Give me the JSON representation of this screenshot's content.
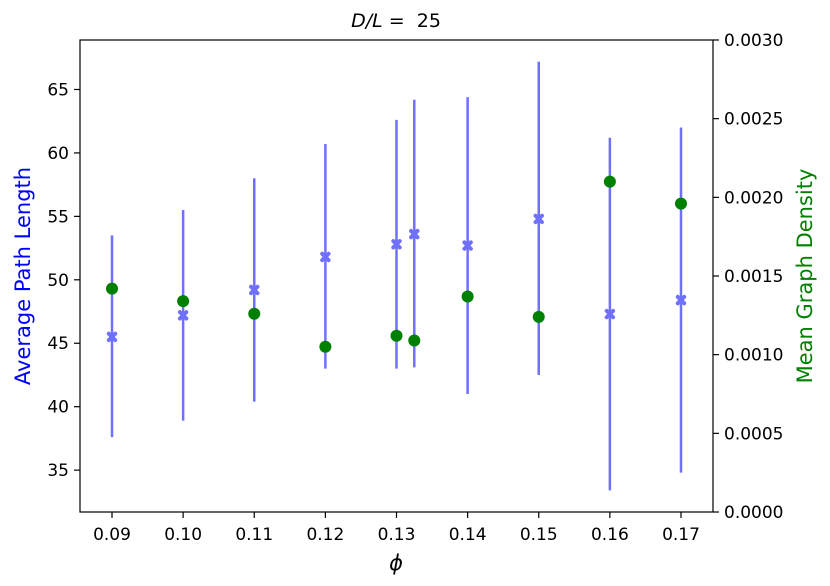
{
  "chart_data": {
    "type": "scatter",
    "title": {
      "italic_part": "D/L",
      "rest": " =  25"
    },
    "xlabel": "ϕ",
    "ylabel_left": "Average Path Length",
    "ylabel_right": "Mean Graph Density",
    "x": [
      0.09,
      0.1,
      0.11,
      0.12,
      0.13,
      0.1325,
      0.14,
      0.15,
      0.16,
      0.17
    ],
    "xlim": [
      0.0855,
      0.1745
    ],
    "xticks": [
      "0.09",
      "0.10",
      "0.11",
      "0.12",
      "0.13",
      "0.14",
      "0.15",
      "0.16",
      "0.17"
    ],
    "xtick_values": [
      0.09,
      0.1,
      0.11,
      0.12,
      0.13,
      0.14,
      0.15,
      0.16,
      0.17
    ],
    "left_axis": {
      "ylim": [
        31.7,
        68.9
      ],
      "ticks": [
        35,
        40,
        45,
        50,
        55,
        60,
        65
      ],
      "tick_labels": [
        "35",
        "40",
        "45",
        "50",
        "55",
        "60",
        "65"
      ],
      "color": "#0000ff"
    },
    "right_axis": {
      "ylim": [
        0.0,
        0.003
      ],
      "ticks": [
        0.0,
        0.0005,
        0.001,
        0.0015,
        0.002,
        0.0025,
        0.003
      ],
      "tick_labels": [
        "0.0000",
        "0.0005",
        "0.0010",
        "0.0015",
        "0.0020",
        "0.0025",
        "0.0030"
      ],
      "color": "#008000"
    },
    "series": [
      {
        "axis": "left",
        "marker": "X",
        "color": "#7070ff",
        "values": [
          45.5,
          47.2,
          49.2,
          51.8,
          52.8,
          53.6,
          52.7,
          54.8,
          47.3,
          48.4
        ],
        "err_lower": [
          37.6,
          38.9,
          40.4,
          43.0,
          43.0,
          43.1,
          41.0,
          42.5,
          33.4,
          34.8
        ],
        "err_upper": [
          53.5,
          55.5,
          58.0,
          60.7,
          62.6,
          64.2,
          64.4,
          67.2,
          61.2,
          62.0
        ]
      },
      {
        "axis": "right",
        "marker": "o",
        "color": "#008000",
        "values": [
          0.00142,
          0.00134,
          0.00126,
          0.00105,
          0.00112,
          0.00109,
          0.00137,
          0.00124,
          0.0021,
          0.00196
        ]
      }
    ],
    "grid": false
  }
}
